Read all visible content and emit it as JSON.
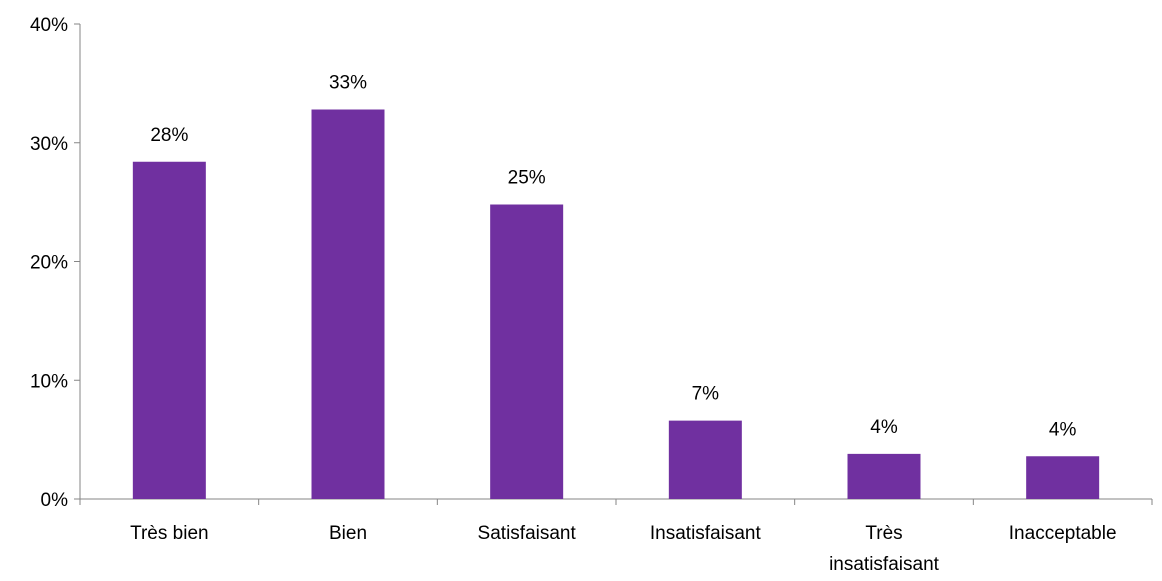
{
  "chart_data": {
    "type": "bar",
    "title": "",
    "xlabel": "",
    "ylabel": "",
    "categories": [
      [
        "Très bien"
      ],
      [
        "Bien"
      ],
      [
        "Satisfaisant"
      ],
      [
        "Insatisfaisant"
      ],
      [
        "Très",
        "insatisfaisant"
      ],
      [
        "Inacceptable"
      ]
    ],
    "values": [
      28.4,
      32.8,
      24.8,
      6.6,
      3.8,
      3.6
    ],
    "data_labels": [
      "28%",
      "33%",
      "25%",
      "7%",
      "4%",
      "4%"
    ],
    "ylim": [
      0,
      40
    ],
    "yticks": [
      0,
      10,
      20,
      30,
      40
    ],
    "ytick_labels": [
      "0%",
      "10%",
      "20%",
      "30%",
      "40%"
    ],
    "grid": false,
    "legend": "none",
    "bar_color": "#7030A0",
    "axis_color": "#868686"
  }
}
